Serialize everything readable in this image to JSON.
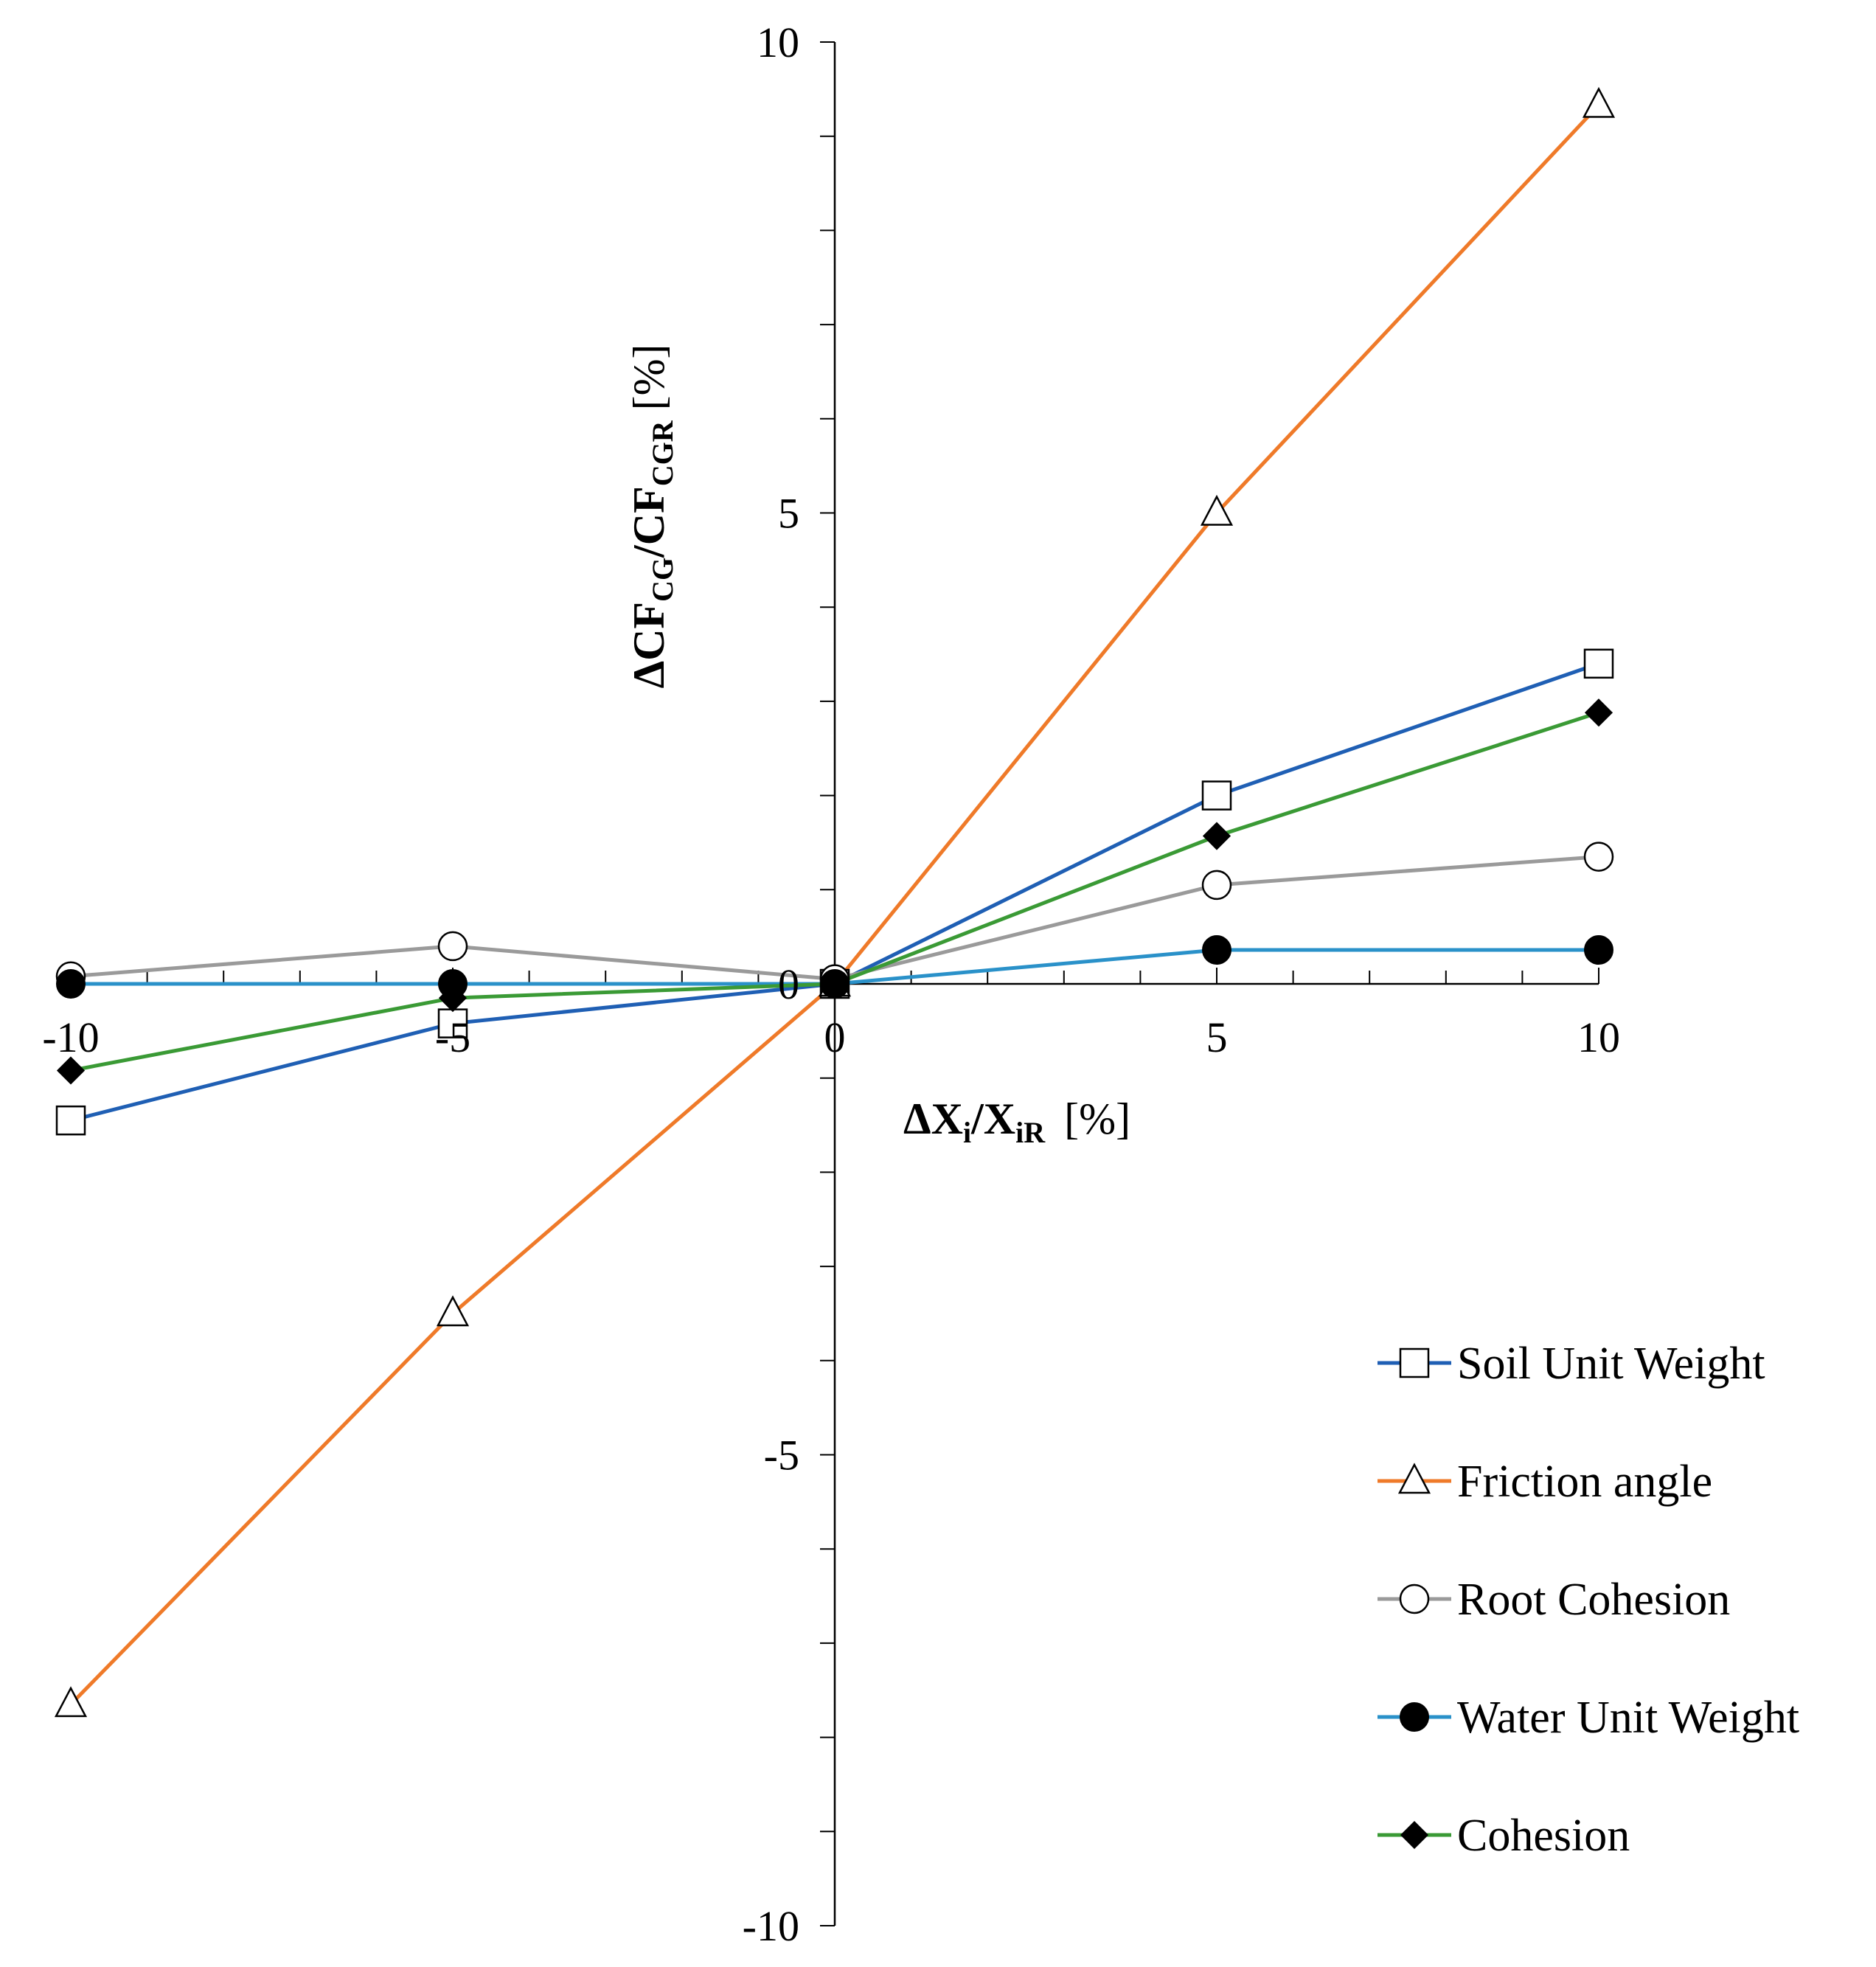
{
  "chart_data": {
    "type": "line",
    "xlabel": "ΔXi/XiR [%]",
    "ylabel": "ΔCFCG/CFCGR [%]",
    "xlabel_parts": {
      "delta": "Δ",
      "x1": "X",
      "sub1": "i",
      "slash": "/",
      "x2": "X",
      "sub2": "iR",
      "unit": "[%]"
    },
    "ylabel_parts": {
      "delta": "Δ",
      "cf1": "CF",
      "sub1": "CG",
      "slash": "/",
      "cf2": "CF",
      "sub2": "CGR",
      "unit": "[%]"
    },
    "xlim": [
      -10,
      10
    ],
    "ylim": [
      -10,
      10
    ],
    "x_ticks": [
      "-10",
      "-5",
      "0",
      "5",
      "10"
    ],
    "y_ticks": [
      "10",
      "5",
      "0",
      "-5",
      "-10"
    ],
    "x": [
      -10,
      -5,
      0,
      5,
      10
    ],
    "legend_position": "bottom-right",
    "series": [
      {
        "name": "Soil Unit Weight",
        "color": "#1f5fb4",
        "marker": "open-square",
        "values": [
          -1.45,
          -0.42,
          0,
          2.0,
          3.4
        ]
      },
      {
        "name": "Friction angle",
        "color": "#ef7a29",
        "marker": "open-triangle",
        "values": [
          -7.65,
          -3.5,
          0,
          5.0,
          9.33
        ]
      },
      {
        "name": "Root Cohesion",
        "color": "#9a9a9a",
        "marker": "open-circle",
        "values": [
          0.08,
          0.4,
          0.05,
          1.05,
          1.35
        ]
      },
      {
        "name": "Water Unit Weight",
        "color": "#2a91c9",
        "marker": "filled-circle",
        "values": [
          0,
          0,
          0,
          0.36,
          0.36
        ]
      },
      {
        "name": "Cohesion",
        "color": "#3a9a35",
        "marker": "filled-diamond",
        "values": [
          -0.92,
          -0.15,
          0,
          1.57,
          2.88
        ]
      }
    ]
  }
}
